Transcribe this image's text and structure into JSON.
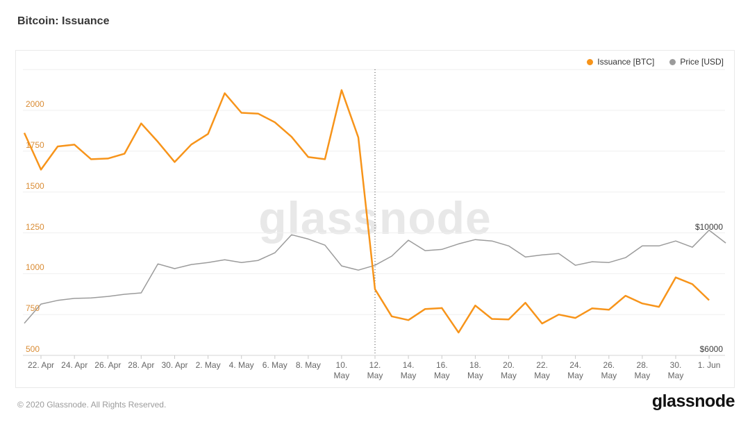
{
  "header": {
    "title": "Bitcoin: Issuance"
  },
  "legend": [
    {
      "label": "Issuance [BTC]",
      "color": "#f7941a"
    },
    {
      "label": "Price [USD]",
      "color": "#9b9b9b"
    }
  ],
  "watermark": "glassnode",
  "footer": {
    "copyright": "© 2020 Glassnode. All Rights Reserved.",
    "logo_text": "glassnode"
  },
  "chart_data": {
    "type": "line",
    "title": "Bitcoin: Issuance",
    "x_unit": "one point per day",
    "x_ticks": [
      {
        "index": 1,
        "label": "22. Apr",
        "two_line": false
      },
      {
        "index": 3,
        "label": "24. Apr",
        "two_line": false
      },
      {
        "index": 5,
        "label": "26. Apr",
        "two_line": false
      },
      {
        "index": 7,
        "label": "28. Apr",
        "two_line": false
      },
      {
        "index": 9,
        "label": "30. Apr",
        "two_line": false
      },
      {
        "index": 11,
        "label": "2. May",
        "two_line": false
      },
      {
        "index": 13,
        "label": "4. May",
        "two_line": false
      },
      {
        "index": 15,
        "label": "6. May",
        "two_line": false
      },
      {
        "index": 17,
        "label": "8. May",
        "two_line": false
      },
      {
        "index": 19,
        "label": "10. May",
        "two_line": true
      },
      {
        "index": 21,
        "label": "12. May",
        "two_line": true
      },
      {
        "index": 23,
        "label": "14. May",
        "two_line": true
      },
      {
        "index": 25,
        "label": "16. May",
        "two_line": true
      },
      {
        "index": 27,
        "label": "18. May",
        "two_line": true
      },
      {
        "index": 29,
        "label": "20. May",
        "two_line": true
      },
      {
        "index": 31,
        "label": "22. May",
        "two_line": true
      },
      {
        "index": 33,
        "label": "24. May",
        "two_line": true
      },
      {
        "index": 35,
        "label": "26. May",
        "two_line": true
      },
      {
        "index": 37,
        "label": "28. May",
        "two_line": true
      },
      {
        "index": 39,
        "label": "30. May",
        "two_line": true
      },
      {
        "index": 41,
        "label": "1. Jun",
        "two_line": false
      }
    ],
    "y_axis_left": {
      "series": "Issuance [BTC]",
      "labels": [
        500,
        750,
        1000,
        1250,
        1500,
        1750,
        2000
      ],
      "gridlines": [
        500,
        750,
        1000,
        1250,
        1500,
        1750,
        2000,
        2250
      ],
      "range": [
        500,
        2250
      ]
    },
    "y_axis_right": {
      "series": "Price [USD]",
      "labels": [
        {
          "value": 10000,
          "label": "$10000"
        },
        {
          "value": 6000,
          "label": "$6000"
        }
      ]
    },
    "halving_line_index": 21,
    "series": [
      {
        "name": "Issuance [BTC]",
        "axis": "left",
        "color": "#f7941a",
        "values": [
          1862,
          1637,
          1779,
          1790,
          1701,
          1705,
          1735,
          1920,
          1807,
          1684,
          1791,
          1856,
          2105,
          1985,
          1980,
          1927,
          1838,
          1714,
          1701,
          2124,
          1834,
          905,
          739,
          716,
          784,
          790,
          640,
          805,
          723,
          720,
          822,
          695,
          750,
          729,
          788,
          779,
          865,
          818,
          797,
          977,
          936,
          838
        ]
      },
      {
        "name": "Price [USD]",
        "axis": "right",
        "color": "#9b9b9b",
        "values": [
          7050,
          7680,
          7800,
          7865,
          7880,
          7930,
          8000,
          8045,
          8995,
          8840,
          8975,
          9040,
          9130,
          9040,
          9110,
          9360,
          9950,
          9810,
          9610,
          8930,
          8790,
          8950,
          9250,
          9770,
          9430,
          9470,
          9650,
          9790,
          9745,
          9585,
          9220,
          9290,
          9335,
          8950,
          9065,
          9040,
          9200,
          9585,
          9585,
          9745,
          9540,
          10100,
          9680
        ]
      }
    ]
  }
}
